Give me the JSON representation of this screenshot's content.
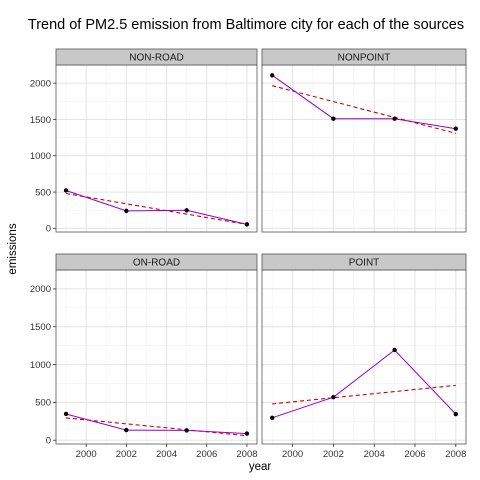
{
  "chart_data": {
    "type": "line",
    "title": "Trend of PM2.5 emission from Baltimore city for each of the sources",
    "xlabel": "year",
    "ylabel": "emissions",
    "xlim": [
      1998.5,
      2008.5
    ],
    "ylim": [
      -50,
      2250
    ],
    "x_ticks": [
      "2000",
      "2002",
      "2004",
      "2006",
      "2008"
    ],
    "y_ticks": [
      "0",
      "500",
      "1000",
      "1500",
      "2000"
    ],
    "grid": true,
    "colors": {
      "line": "#9400d3",
      "trend": "#cc0000",
      "point": "#000000",
      "strip_fill": "#c8c8c8",
      "panel_border": "#555555",
      "grid_major": "#e3e3e3",
      "grid_minor": "#f2f2f2"
    },
    "panels": [
      {
        "name": "NON-ROAD",
        "x": [
          1999,
          2002,
          2005,
          2008
        ],
        "values": [
          522,
          241,
          249,
          55
        ],
        "trend": [
          [
            1999,
            480
          ],
          [
            2008,
            55
          ]
        ]
      },
      {
        "name": "NONPOINT",
        "x": [
          1999,
          2002,
          2005,
          2008
        ],
        "values": [
          2108,
          1510,
          1510,
          1373
        ],
        "trend": [
          [
            1999,
            1965
          ],
          [
            2008,
            1310
          ]
        ]
      },
      {
        "name": "ON-ROAD",
        "x": [
          1999,
          2002,
          2005,
          2008
        ],
        "values": [
          347,
          134,
          130,
          88
        ],
        "trend": [
          [
            1999,
            295
          ],
          [
            2008,
            60
          ]
        ]
      },
      {
        "name": "POINT",
        "x": [
          1999,
          2002,
          2005,
          2008
        ],
        "values": [
          296,
          569,
          1193,
          345
        ],
        "trend": [
          [
            1999,
            480
          ],
          [
            2008,
            725
          ]
        ]
      }
    ]
  }
}
